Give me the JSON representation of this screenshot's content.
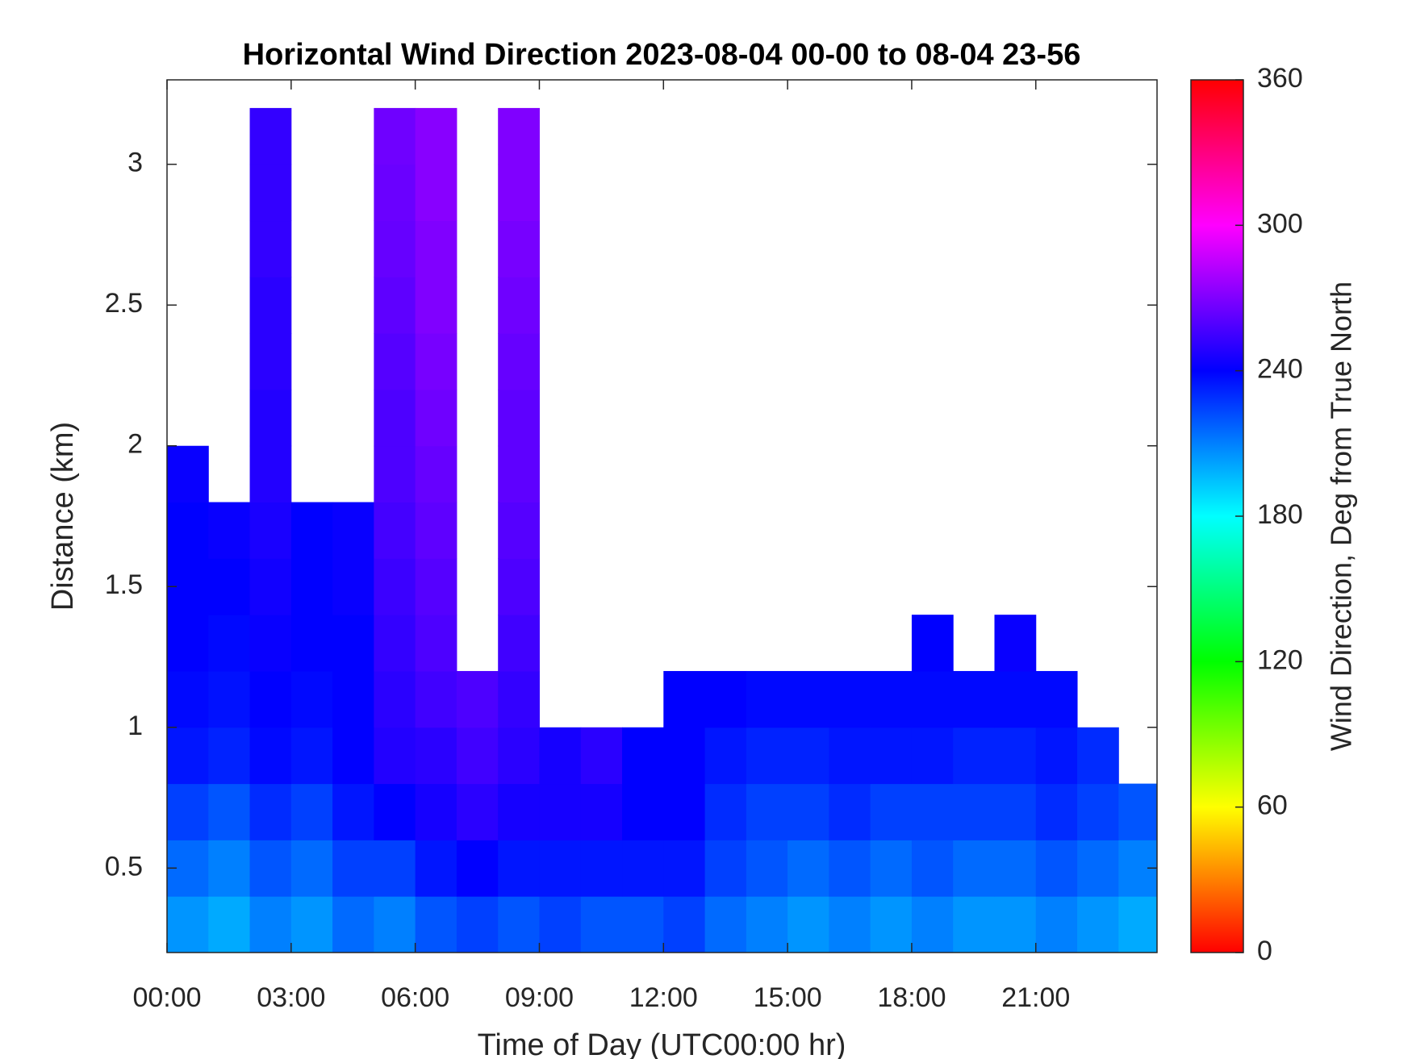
{
  "chart_data": {
    "type": "heatmap",
    "title": "Horizontal Wind Direction 2023-08-04 00-00 to 08-04 23-56",
    "x_label": "Time of Day (UTC00:00 hr)",
    "y_label": "Distance (km)",
    "colorbar_label": "Wind Direction, Deg from True North",
    "colormap": "hsv",
    "xlim": [
      0,
      23.93
    ],
    "xticks": [
      {
        "value": 0,
        "label": "00:00"
      },
      {
        "value": 3,
        "label": "03:00"
      },
      {
        "value": 6,
        "label": "06:00"
      },
      {
        "value": 9,
        "label": "09:00"
      },
      {
        "value": 12,
        "label": "12:00"
      },
      {
        "value": 15,
        "label": "15:00"
      },
      {
        "value": 18,
        "label": "18:00"
      },
      {
        "value": 21,
        "label": "21:00"
      }
    ],
    "ylim": [
      0.2,
      3.3
    ],
    "yticks": [
      0.5,
      1,
      1.5,
      2,
      2.5,
      3
    ],
    "clim": [
      0,
      360
    ],
    "cticks": [
      0,
      60,
      120,
      180,
      240,
      300,
      360
    ],
    "x": [
      0.5,
      1.5,
      2.5,
      3.5,
      4.5,
      5.5,
      6.5,
      7.5,
      8.5,
      9.5,
      10.5,
      11.5,
      12.5,
      13.5,
      14.5,
      15.5,
      16.5,
      17.5,
      18.5,
      19.5,
      20.5,
      21.5,
      22.5,
      23.5
    ],
    "y": [
      0.3,
      0.5,
      0.7,
      0.9,
      1.1,
      1.3,
      1.5,
      1.7,
      1.9,
      2.1,
      2.3,
      2.5,
      2.7,
      2.9,
      3.1
    ],
    "z": [
      [
        205,
        200,
        210,
        205,
        215,
        210,
        220,
        225,
        220,
        225,
        220,
        220,
        225,
        215,
        210,
        205,
        210,
        205,
        210,
        205,
        205,
        210,
        205,
        200
      ],
      [
        215,
        210,
        220,
        215,
        225,
        225,
        235,
        240,
        235,
        235,
        235,
        235,
        235,
        225,
        220,
        215,
        220,
        215,
        220,
        215,
        215,
        220,
        215,
        210
      ],
      [
        225,
        220,
        230,
        225,
        235,
        240,
        245,
        250,
        245,
        245,
        245,
        240,
        240,
        230,
        225,
        225,
        230,
        225,
        225,
        225,
        225,
        230,
        225,
        220
      ],
      [
        235,
        232,
        238,
        235,
        240,
        248,
        250,
        255,
        250,
        245,
        250,
        240,
        240,
        235,
        232,
        232,
        235,
        235,
        235,
        232,
        232,
        235,
        230,
        null
      ],
      [
        238,
        236,
        240,
        238,
        240,
        250,
        255,
        258,
        252,
        null,
        null,
        null,
        240,
        240,
        238,
        238,
        238,
        238,
        238,
        238,
        238,
        238,
        null,
        null
      ],
      [
        240,
        238,
        242,
        240,
        240,
        252,
        258,
        null,
        255,
        null,
        null,
        null,
        null,
        null,
        null,
        null,
        null,
        null,
        240,
        null,
        242,
        null,
        null,
        null
      ],
      [
        240,
        240,
        244,
        240,
        242,
        254,
        260,
        null,
        258,
        null,
        null,
        null,
        null,
        null,
        null,
        null,
        null,
        null,
        null,
        null,
        null,
        null,
        null,
        null
      ],
      [
        240,
        242,
        246,
        240,
        242,
        256,
        262,
        null,
        260,
        null,
        null,
        null,
        null,
        null,
        null,
        null,
        null,
        null,
        null,
        null,
        null,
        null,
        null,
        null
      ],
      [
        242,
        null,
        248,
        null,
        null,
        258,
        264,
        null,
        262,
        null,
        null,
        null,
        null,
        null,
        null,
        null,
        null,
        null,
        null,
        null,
        null,
        null,
        null,
        null
      ],
      [
        null,
        null,
        248,
        null,
        null,
        258,
        266,
        null,
        262,
        null,
        null,
        null,
        null,
        null,
        null,
        null,
        null,
        null,
        null,
        null,
        null,
        null,
        null,
        null
      ],
      [
        null,
        null,
        250,
        null,
        null,
        260,
        268,
        null,
        264,
        null,
        null,
        null,
        null,
        null,
        null,
        null,
        null,
        null,
        null,
        null,
        null,
        null,
        null,
        null
      ],
      [
        null,
        null,
        250,
        null,
        null,
        262,
        270,
        null,
        266,
        null,
        null,
        null,
        null,
        null,
        null,
        null,
        null,
        null,
        null,
        null,
        null,
        null,
        null,
        null
      ],
      [
        null,
        null,
        252,
        null,
        null,
        264,
        270,
        null,
        268,
        null,
        null,
        null,
        null,
        null,
        null,
        null,
        null,
        null,
        null,
        null,
        null,
        null,
        null,
        null
      ],
      [
        null,
        null,
        252,
        null,
        null,
        265,
        272,
        null,
        270,
        null,
        null,
        null,
        null,
        null,
        null,
        null,
        null,
        null,
        null,
        null,
        null,
        null,
        null,
        null
      ],
      [
        null,
        null,
        252,
        null,
        null,
        266,
        272,
        null,
        270,
        null,
        null,
        null,
        null,
        null,
        null,
        null,
        null,
        null,
        null,
        null,
        null,
        null,
        null,
        null
      ]
    ]
  }
}
